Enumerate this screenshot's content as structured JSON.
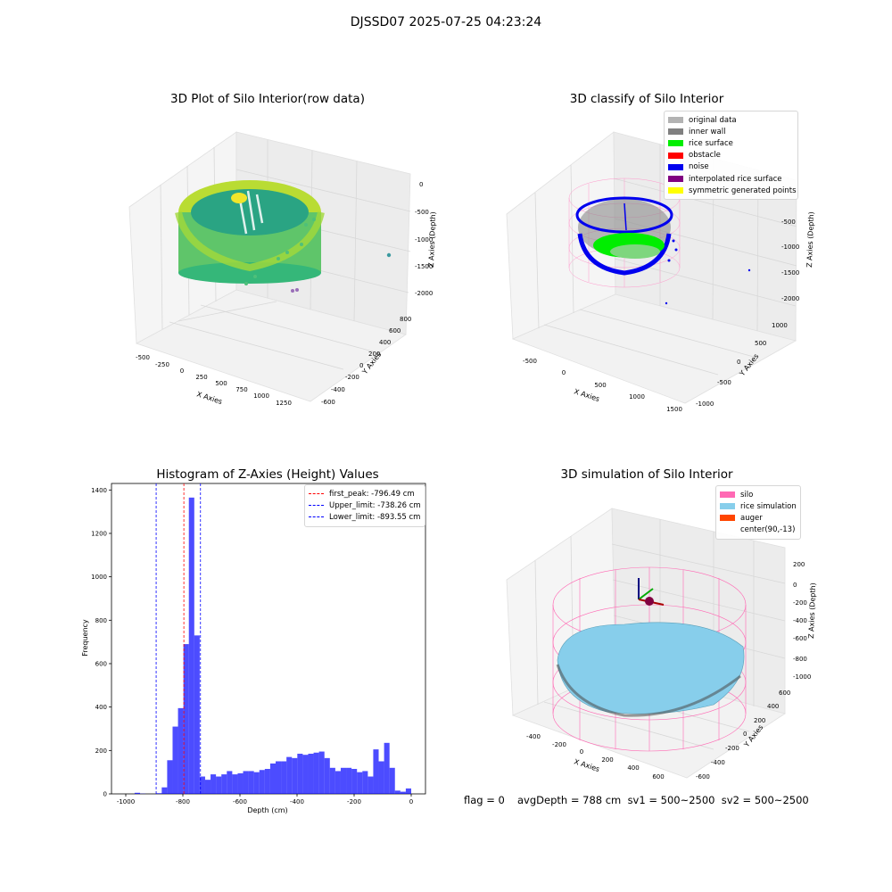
{
  "suptitle": "DJSSD07 2025-07-25 04:23:24",
  "panels": {
    "raw": {
      "title": "3D Plot of Silo Interior(row data)",
      "xlabel": "X Axies",
      "ylabel": "Y Axies",
      "zlabel": "Z Axies (Depth)",
      "xticks": [
        "-500",
        "-250",
        "0",
        "250",
        "500",
        "750",
        "1000",
        "1250"
      ],
      "yticks": [
        "800",
        "600",
        "400",
        "200",
        "0",
        "-200",
        "-400",
        "-600"
      ],
      "zticks": [
        "0",
        "-500",
        "-1000",
        "-1500",
        "-2000"
      ]
    },
    "classify": {
      "title": "3D classify of Silo Interior",
      "xlabel": "X Axies",
      "ylabel": "Y Axies",
      "zlabel": "Z Axies (Depth)",
      "xticks": [
        "-500",
        "0",
        "500",
        "1000",
        "1500"
      ],
      "yticks": [
        "1000",
        "500",
        "0",
        "-500",
        "-1000"
      ],
      "zticks": [
        "-500",
        "-1000",
        "-1500",
        "-2000"
      ],
      "legend": [
        {
          "label": "original data",
          "color": "#b3b3b3"
        },
        {
          "label": "inner wall",
          "color": "#808080"
        },
        {
          "label": "rice surface",
          "color": "#00ee00"
        },
        {
          "label": "obstacle",
          "color": "#ff0000"
        },
        {
          "label": "noise",
          "color": "#0000ee"
        },
        {
          "label": "interpolated rice surface",
          "color": "#800080"
        },
        {
          "label": "symmetric generated points",
          "color": "#ffff00"
        }
      ]
    },
    "simulation": {
      "title": "3D simulation of Silo Interior",
      "xlabel": "X Axies",
      "ylabel": "Y Axies",
      "zlabel": "Z Axies (Depth)",
      "xticks": [
        "-400",
        "-200",
        "0",
        "200",
        "400",
        "600"
      ],
      "yticks": [
        "600",
        "400",
        "200",
        "0",
        "-200",
        "-400",
        "-600"
      ],
      "zticks": [
        "200",
        "0",
        "-200",
        "-400",
        "-600",
        "-800",
        "-1000"
      ],
      "legend": [
        {
          "label": "silo",
          "color": "#ff69b4"
        },
        {
          "label": "rice simulation",
          "color": "#87ceeb"
        },
        {
          "label": "auger",
          "color": "#ff4500"
        },
        {
          "label": "center(90,-13)",
          "color": ""
        }
      ]
    }
  },
  "footer": {
    "flag": "flag = 0",
    "stats": "avgDepth = 788 cm  sv1 = 500~2500  sv2 = 500~2500"
  },
  "chart_data": [
    {
      "type": "scatter",
      "title": "3D Plot of Silo Interior(row data)",
      "xlabel": "X Axies",
      "ylabel": "Y Axies",
      "zlabel": "Z Axies (Depth)",
      "xlim": [
        -600,
        1400
      ],
      "ylim": [
        -650,
        900
      ],
      "zlim": [
        -2100,
        100
      ],
      "grid": true
    },
    {
      "type": "scatter",
      "title": "3D classify of Silo Interior",
      "xlabel": "X Axies",
      "ylabel": "Y Axies",
      "zlabel": "Z Axies (Depth)",
      "xlim": [
        -700,
        1550
      ],
      "ylim": [
        -1100,
        1100
      ],
      "zlim": [
        -2100,
        -300
      ],
      "legend": "top-right",
      "grid": true
    },
    {
      "type": "bar",
      "title": "Histogram of Z-Axies (Height) Values",
      "xlabel": "Depth (cm)",
      "ylabel": "Frequency",
      "xlim": [
        -1050,
        50
      ],
      "ylim": [
        0,
        1430
      ],
      "xticks": [
        -1000,
        -800,
        -600,
        -400,
        -200,
        0
      ],
      "yticks": [
        0,
        200,
        400,
        600,
        800,
        1000,
        1200,
        1400
      ],
      "bin_width": 19,
      "bin_starts": [
        -969,
        -950,
        -931,
        -912,
        -893,
        -874,
        -855,
        -836,
        -817,
        -798,
        -779,
        -760,
        -741,
        -722,
        -703,
        -684,
        -665,
        -646,
        -627,
        -608,
        -589,
        -570,
        -551,
        -532,
        -513,
        -494,
        -475,
        -456,
        -437,
        -418,
        -399,
        -380,
        -361,
        -342,
        -323,
        -304,
        -285,
        -266,
        -247,
        -228,
        -209,
        -190,
        -171,
        -152,
        -133,
        -114,
        -95,
        -76,
        -57,
        -38,
        -19,
        0
      ],
      "values": [
        5,
        1,
        0,
        0,
        3,
        30,
        155,
        310,
        395,
        690,
        1365,
        730,
        80,
        65,
        90,
        80,
        90,
        105,
        90,
        95,
        105,
        105,
        100,
        110,
        115,
        140,
        150,
        150,
        170,
        165,
        185,
        180,
        185,
        190,
        195,
        165,
        120,
        105,
        120,
        120,
        115,
        100,
        105,
        80,
        205,
        150,
        235,
        120,
        15,
        10,
        25,
        0
      ],
      "color": "#0000ff",
      "vlines": [
        {
          "name": "first_peak: -796.49 cm",
          "x": -796.49,
          "color": "#ff0000"
        },
        {
          "name": "Upper_limit: -738.26 cm",
          "x": -738.26,
          "color": "#0000ff"
        },
        {
          "name": "Lower_limit: -893.55 cm",
          "x": -893.55,
          "color": "#0000ff"
        }
      ],
      "legend": "top-right"
    },
    {
      "type": "scatter",
      "title": "3D simulation of Silo Interior",
      "xlabel": "X Axies",
      "ylabel": "Y Axies",
      "zlabel": "Z Axies (Depth)",
      "xlim": [
        -550,
        700
      ],
      "ylim": [
        -700,
        700
      ],
      "zlim": [
        -1050,
        300
      ],
      "legend": "top-right",
      "grid": true
    }
  ]
}
